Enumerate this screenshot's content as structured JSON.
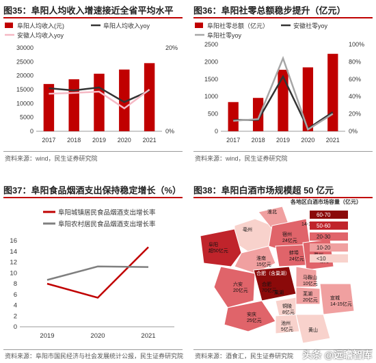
{
  "panels": {
    "p35": {
      "title": "图35：阜阳人均收入增速接近全省平均水平",
      "source": "资料来源：wind，民生证券研究院"
    },
    "p36": {
      "title": "图36：阜阳社零总额稳步提升（亿元）",
      "source": "资料来源：wind，民生证券研究院"
    },
    "p37": {
      "title": "图37：阜阳食品烟酒支出保持稳定增长（%）",
      "source": "资料来源：阜阳市国民经济与社会发展统计公报，民生证券研究院"
    },
    "p38": {
      "title": "图38：阜阳白酒市场规模超 50 亿元",
      "source": "资料来源：酒食汇，民生证券研究院"
    }
  },
  "chart_data": [
    {
      "type": "bar",
      "categories": [
        "2017",
        "2018",
        "2019",
        "2020",
        "2021"
      ],
      "series": [
        {
          "name": "阜阳人均收入(元)",
          "kind": "bar",
          "axis": "left",
          "values": [
            17000,
            18700,
            20700,
            22200,
            24500
          ],
          "color": "#c00000"
        },
        {
          "name": "阜阳人均收入yoy",
          "kind": "line",
          "axis": "right",
          "values": [
            10.3,
            9.8,
            10.5,
            7.0,
            9.7
          ],
          "color": "#333333"
        },
        {
          "name": "安徽人均收入yoy",
          "kind": "line",
          "axis": "right",
          "values": [
            9.0,
            9.2,
            9.5,
            5.5,
            10.0
          ],
          "color": "#f5b8c4"
        }
      ],
      "ylim": [
        0,
        30000
      ],
      "yticks": [
        0,
        5000,
        10000,
        15000,
        20000,
        25000,
        30000
      ],
      "y2lim": [
        0,
        20
      ],
      "y2ticks": [
        "0%",
        "20%"
      ]
    },
    {
      "type": "bar",
      "categories": [
        "2017",
        "2018",
        "2019",
        "2020",
        "2021"
      ],
      "series": [
        {
          "name": "阜阳社零总额（亿元）",
          "kind": "bar",
          "axis": "left",
          "values": [
            840,
            960,
            1770,
            1840,
            2230
          ],
          "color": "#c00000"
        },
        {
          "name": "安徽社零yoy",
          "kind": "line",
          "axis": "right",
          "values": [
            13,
            13,
            63,
            3,
            22
          ],
          "color": "#333333"
        },
        {
          "name": "阜阳社零yoy",
          "kind": "line",
          "axis": "right",
          "values": [
            12,
            14,
            84,
            2,
            20
          ],
          "color": "#a6a6a6"
        }
      ],
      "ylim": [
        0,
        2500
      ],
      "yticks": [
        0,
        500,
        1000,
        1500,
        2000,
        2500
      ],
      "y2lim": [
        0,
        100
      ],
      "y2ticks": [
        "0%",
        "20%",
        "40%",
        "60%",
        "80%",
        "100%"
      ]
    },
    {
      "type": "line",
      "categories": [
        "2019",
        "2020",
        "2021"
      ],
      "series": [
        {
          "name": "阜阳城镇居民食品烟酒支出增长率",
          "values": [
            8.0,
            5.4,
            14.8
          ],
          "color": "#c00000"
        },
        {
          "name": "阜阳农村居民食品烟酒支出增长率",
          "values": [
            8.7,
            11.2,
            11.1
          ],
          "color": "#7f7f7f"
        }
      ],
      "ylim": [
        0,
        16
      ],
      "yticks": [
        0,
        2,
        4,
        6,
        8,
        10,
        12,
        14,
        16
      ]
    },
    {
      "type": "map",
      "legend_title": "各地区白酒市场容量（亿元）",
      "legend": [
        {
          "label": "60-70",
          "color": "#8b0a0a"
        },
        {
          "label": "50-60",
          "color": "#c0242b"
        },
        {
          "label": "20-30",
          "color": "#e0646a"
        },
        {
          "label": "10-20",
          "color": "#f0a0a0"
        },
        {
          "label": "<10",
          "color": "#f8d2cc"
        }
      ],
      "regions": [
        {
          "name": "淮北",
          "value": ""
        },
        {
          "name": "亳州",
          "value": ""
        },
        {
          "name": "宿州",
          "value": "24亿元"
        },
        {
          "name": "14-15亿元",
          "value": ""
        },
        {
          "name": "阜阳",
          "value": "超50亿元"
        },
        {
          "name": "蚌埠",
          "value": "24亿元"
        },
        {
          "name": "淮南",
          "value": "15亿元"
        },
        {
          "name": "滁州",
          "value": "25亿元"
        },
        {
          "name": "六安",
          "value": "20亿元"
        },
        {
          "name": "合肥",
          "value": "70亿元"
        },
        {
          "name": "马鞍山",
          "value": "10亿元"
        },
        {
          "name": "芜湖",
          "value": "20亿元"
        },
        {
          "name": "宣城",
          "value": "14-15亿元"
        },
        {
          "name": "铜陵",
          "value": "8亿元"
        },
        {
          "name": "安庆",
          "value": "25亿元"
        },
        {
          "name": "池州",
          "value": "5亿元"
        },
        {
          "name": "黄山",
          "value": ""
        },
        {
          "name": "巢湖",
          "value": ""
        }
      ],
      "center_label": "合肥（含巢湖）"
    }
  ],
  "watermark": "头条 @远瞻智库"
}
